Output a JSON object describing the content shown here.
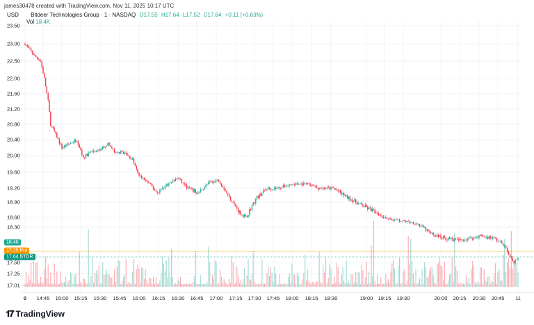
{
  "credit": "james30478 created with TradingView.com, Nov 11, 2025 10:17 UTC",
  "legend": {
    "currency": "USD",
    "symbol": "Bitdeer Technologies Group · 1 · NASDAQ",
    "open": "O17.55",
    "high": "H17.64",
    "low": "L17.52",
    "close": "C17.64",
    "change": "+0.11 (+0.63%)",
    "vol_label": "Vol",
    "vol_value": "18.4K"
  },
  "tags": {
    "volume": "18.4K",
    "pre_price": "17.75",
    "pre_label": "Pre",
    "last_price": "17.64",
    "last_label": "BTDR"
  },
  "colors": {
    "up": "#22ab94",
    "down": "#f23645",
    "pre": "#ff9800",
    "grid": "#f0f3fa"
  },
  "logo": "TradingView",
  "chart_data": {
    "type": "candlestick",
    "yticks": [
      "23.50",
      "23.00",
      "22.50",
      "22.00",
      "21.60",
      "21.20",
      "20.80",
      "20.40",
      "20.00",
      "19.60",
      "19.20",
      "18.90",
      "18.60",
      "18.30",
      "17.50",
      "17.25",
      "17.01"
    ],
    "xticks": [
      "0",
      "14:45",
      "15:00",
      "15:15",
      "15:30",
      "15:45",
      "16:00",
      "16:15",
      "16:30",
      "16:45",
      "17:00",
      "17:15",
      "17:30",
      "17:45",
      "18:00",
      "18:15",
      "18:30",
      "19:00",
      "19:15",
      "19:30",
      "20:00",
      "20:15",
      "20:30",
      "20:45",
      "11"
    ],
    "price_path": [
      [
        "14:30",
        23.0
      ],
      [
        "14:38",
        22.65
      ],
      [
        "14:43",
        22.5
      ],
      [
        "14:46",
        22.0
      ],
      [
        "14:49",
        21.4
      ],
      [
        "14:51",
        20.8
      ],
      [
        "14:54",
        20.6
      ],
      [
        "15:00",
        20.2
      ],
      [
        "15:06",
        20.3
      ],
      [
        "15:12",
        20.4
      ],
      [
        "15:17",
        19.95
      ],
      [
        "15:23",
        20.1
      ],
      [
        "15:28",
        20.1
      ],
      [
        "15:36",
        20.3
      ],
      [
        "15:42",
        20.05
      ],
      [
        "15:47",
        20.1
      ],
      [
        "15:55",
        19.9
      ],
      [
        "16:00",
        19.5
      ],
      [
        "16:05",
        19.4
      ],
      [
        "16:14",
        19.1
      ],
      [
        "16:22",
        19.3
      ],
      [
        "16:30",
        19.45
      ],
      [
        "16:38",
        19.2
      ],
      [
        "16:46",
        19.1
      ],
      [
        "16:55",
        19.35
      ],
      [
        "17:02",
        19.4
      ],
      [
        "17:10",
        19.0
      ],
      [
        "17:18",
        18.7
      ],
      [
        "17:23",
        18.6
      ],
      [
        "17:32",
        19.0
      ],
      [
        "17:40",
        19.2
      ],
      [
        "17:48",
        19.2
      ],
      [
        "18:00",
        19.3
      ],
      [
        "18:11",
        19.3
      ],
      [
        "18:22",
        19.2
      ],
      [
        "18:32",
        19.2
      ],
      [
        "18:44",
        19.0
      ],
      [
        "18:55",
        18.85
      ],
      [
        "19:08",
        18.7
      ],
      [
        "19:19",
        18.55
      ],
      [
        "19:27",
        18.5
      ],
      [
        "19:36",
        18.45
      ],
      [
        "19:41",
        18.4
      ],
      [
        "19:52",
        18.15
      ],
      [
        "20:03",
        18.05
      ],
      [
        "20:14",
        18.0
      ],
      [
        "20:23",
        18.05
      ],
      [
        "20:31",
        18.1
      ],
      [
        "20:42",
        18.05
      ],
      [
        "20:50",
        17.9
      ],
      [
        "20:57",
        17.45
      ],
      [
        "21:00",
        17.64
      ]
    ],
    "last_price": 17.64,
    "pre_market_price": 17.75,
    "last_volume": "18.4K"
  }
}
